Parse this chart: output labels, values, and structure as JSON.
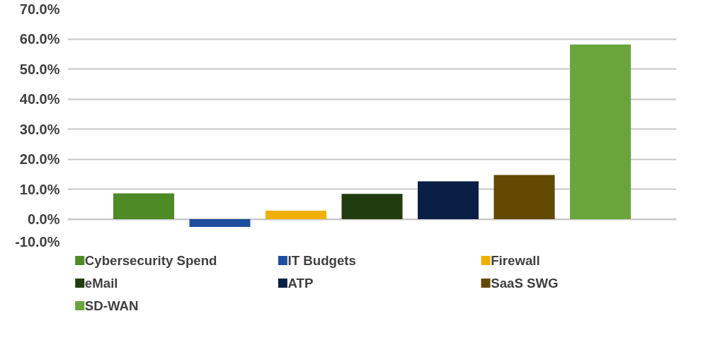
{
  "chart_data": {
    "type": "bar",
    "categories": [
      null
    ],
    "series": [
      {
        "name": "Cybersecurity Spend",
        "color": "#4e8a26",
        "values": [
          8.6
        ]
      },
      {
        "name": "IT Budgets",
        "color": "#1f4e9c",
        "values": [
          -2.6
        ]
      },
      {
        "name": "Firewall",
        "color": "#f0b000",
        "values": [
          2.8
        ]
      },
      {
        "name": "eMail",
        "color": "#213d10",
        "values": [
          8.4
        ]
      },
      {
        "name": "ATP",
        "color": "#0a1f44",
        "values": [
          12.6
        ]
      },
      {
        "name": "SaaS SWG",
        "color": "#634800",
        "values": [
          14.7
        ]
      },
      {
        "name": "SD-WAN",
        "color": "#6aa53c",
        "values": [
          58.1
        ]
      }
    ],
    "ylim": [
      -10,
      70
    ],
    "yticks": [
      {
        "value": -10,
        "label": "-10.0%"
      },
      {
        "value": 0,
        "label": "0.0%"
      },
      {
        "value": 10,
        "label": "10.0%"
      },
      {
        "value": 20,
        "label": "20.0%"
      },
      {
        "value": 30,
        "label": "30.0%"
      },
      {
        "value": 40,
        "label": "40.0%"
      },
      {
        "value": 50,
        "label": "50.0%"
      },
      {
        "value": 60,
        "label": "60.0%"
      },
      {
        "value": 70,
        "label": "70.0%"
      }
    ],
    "grid": "y",
    "legend": "bottom"
  }
}
